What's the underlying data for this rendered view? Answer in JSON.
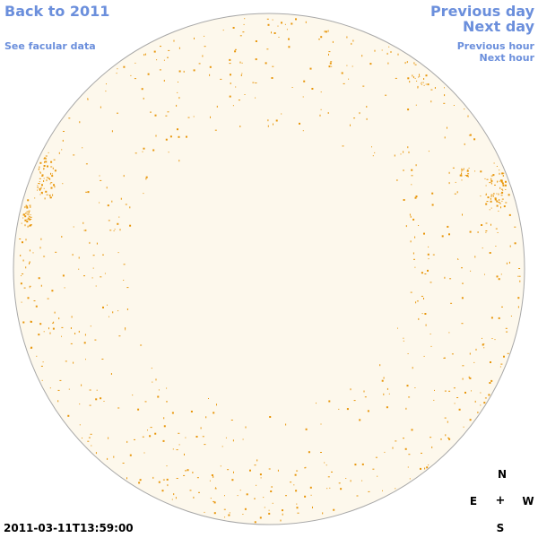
{
  "nav": {
    "back": "Back to 2011",
    "facular": "See facular data",
    "prev_day": "Previous day",
    "next_day": "Next day",
    "prev_hour": "Previous hour",
    "next_hour": "Next hour"
  },
  "compass": {
    "north": "N",
    "east": "E",
    "center": "+",
    "west": "W",
    "south": "S"
  },
  "timestamp": "2011-03-11T13:59:00",
  "colors": {
    "disk_fill": "#fdf8ec",
    "disk_stroke": "#a8a8a8",
    "facula": "#e8960a",
    "link": "#6b8fdc"
  }
}
